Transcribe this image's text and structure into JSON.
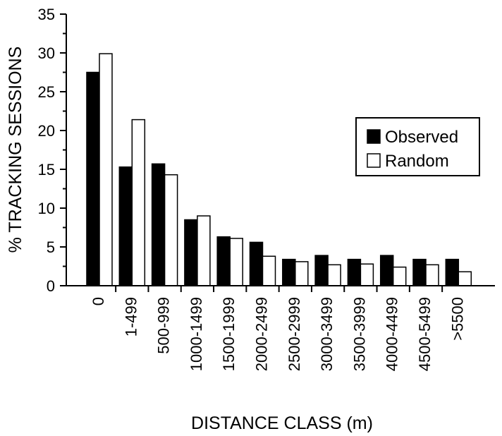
{
  "chart_data": {
    "type": "bar",
    "title": "",
    "xlabel": "DISTANCE CLASS (m)",
    "ylabel": "% TRACKING SESSIONS",
    "ylim": [
      0,
      35
    ],
    "yticks": [
      "0",
      "5",
      "10",
      "15",
      "20",
      "25",
      "30",
      "35"
    ],
    "grid": false,
    "legend_position": "right",
    "categories": [
      "0",
      "1-499",
      "500-999",
      "1000-1499",
      "1500-1999",
      "2000-2499",
      "2500-2999",
      "3000-3499",
      "3500-3999",
      "4000-4499",
      "4500-5499",
      ">5500"
    ],
    "series": [
      {
        "name": "Observed",
        "color": "#000000",
        "values": [
          27.5,
          15.3,
          15.7,
          8.5,
          6.3,
          5.6,
          3.4,
          3.9,
          3.4,
          3.9,
          3.4,
          3.4
        ]
      },
      {
        "name": "Random",
        "color": "#ffffff",
        "values": [
          29.9,
          21.4,
          14.3,
          9.0,
          6.1,
          3.8,
          3.1,
          2.7,
          2.8,
          2.4,
          2.7,
          1.8
        ]
      }
    ]
  }
}
